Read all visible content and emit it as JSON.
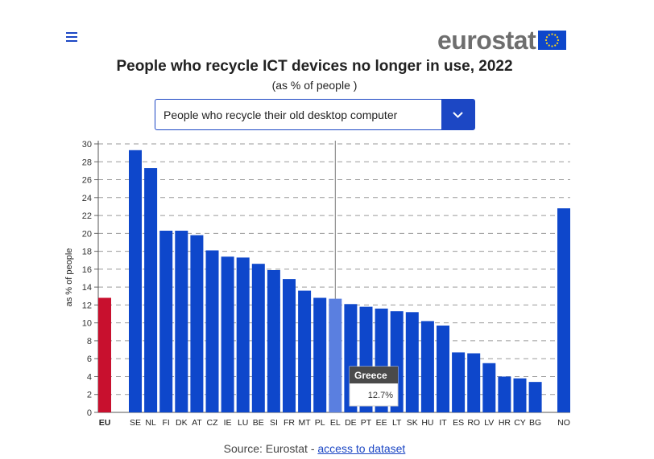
{
  "header": {
    "logo_text": "eurostat",
    "title": "People who recycle ICT devices no longer in use, 2022",
    "subtitle": "(as % of people )"
  },
  "selector": {
    "selected": "People who recycle their old desktop computer"
  },
  "chart_data": {
    "type": "bar",
    "ylabel": "as % of people",
    "ylim": [
      0,
      30
    ],
    "yticks": [
      0,
      2,
      4,
      6,
      8,
      10,
      12,
      14,
      16,
      18,
      20,
      22,
      24,
      26,
      28,
      30
    ],
    "grid": true,
    "categories": [
      "EU",
      "SE",
      "NL",
      "FI",
      "DK",
      "AT",
      "CZ",
      "IE",
      "LU",
      "BE",
      "SI",
      "FR",
      "MT",
      "PL",
      "EL",
      "DE",
      "PT",
      "EE",
      "LT",
      "SK",
      "HU",
      "IT",
      "ES",
      "RO",
      "LV",
      "HR",
      "CY",
      "BG",
      "NO"
    ],
    "values": [
      12.8,
      29.3,
      27.3,
      20.3,
      20.3,
      19.8,
      18.1,
      17.4,
      17.3,
      16.6,
      15.9,
      14.9,
      13.6,
      12.8,
      12.7,
      12.1,
      11.8,
      11.6,
      11.3,
      11.2,
      10.2,
      9.7,
      6.7,
      6.6,
      5.5,
      4.0,
      3.8,
      3.4,
      22.8
    ],
    "colors": {
      "eu": "#c8102e",
      "country": "#0e47cb",
      "highlight": "#5a7fe0"
    },
    "highlight_category": "EL",
    "tooltip": {
      "title": "Greece",
      "value": "12.7%"
    }
  },
  "footer": {
    "source_prefix": "Source: Eurostat - ",
    "link_text": "access to dataset"
  }
}
